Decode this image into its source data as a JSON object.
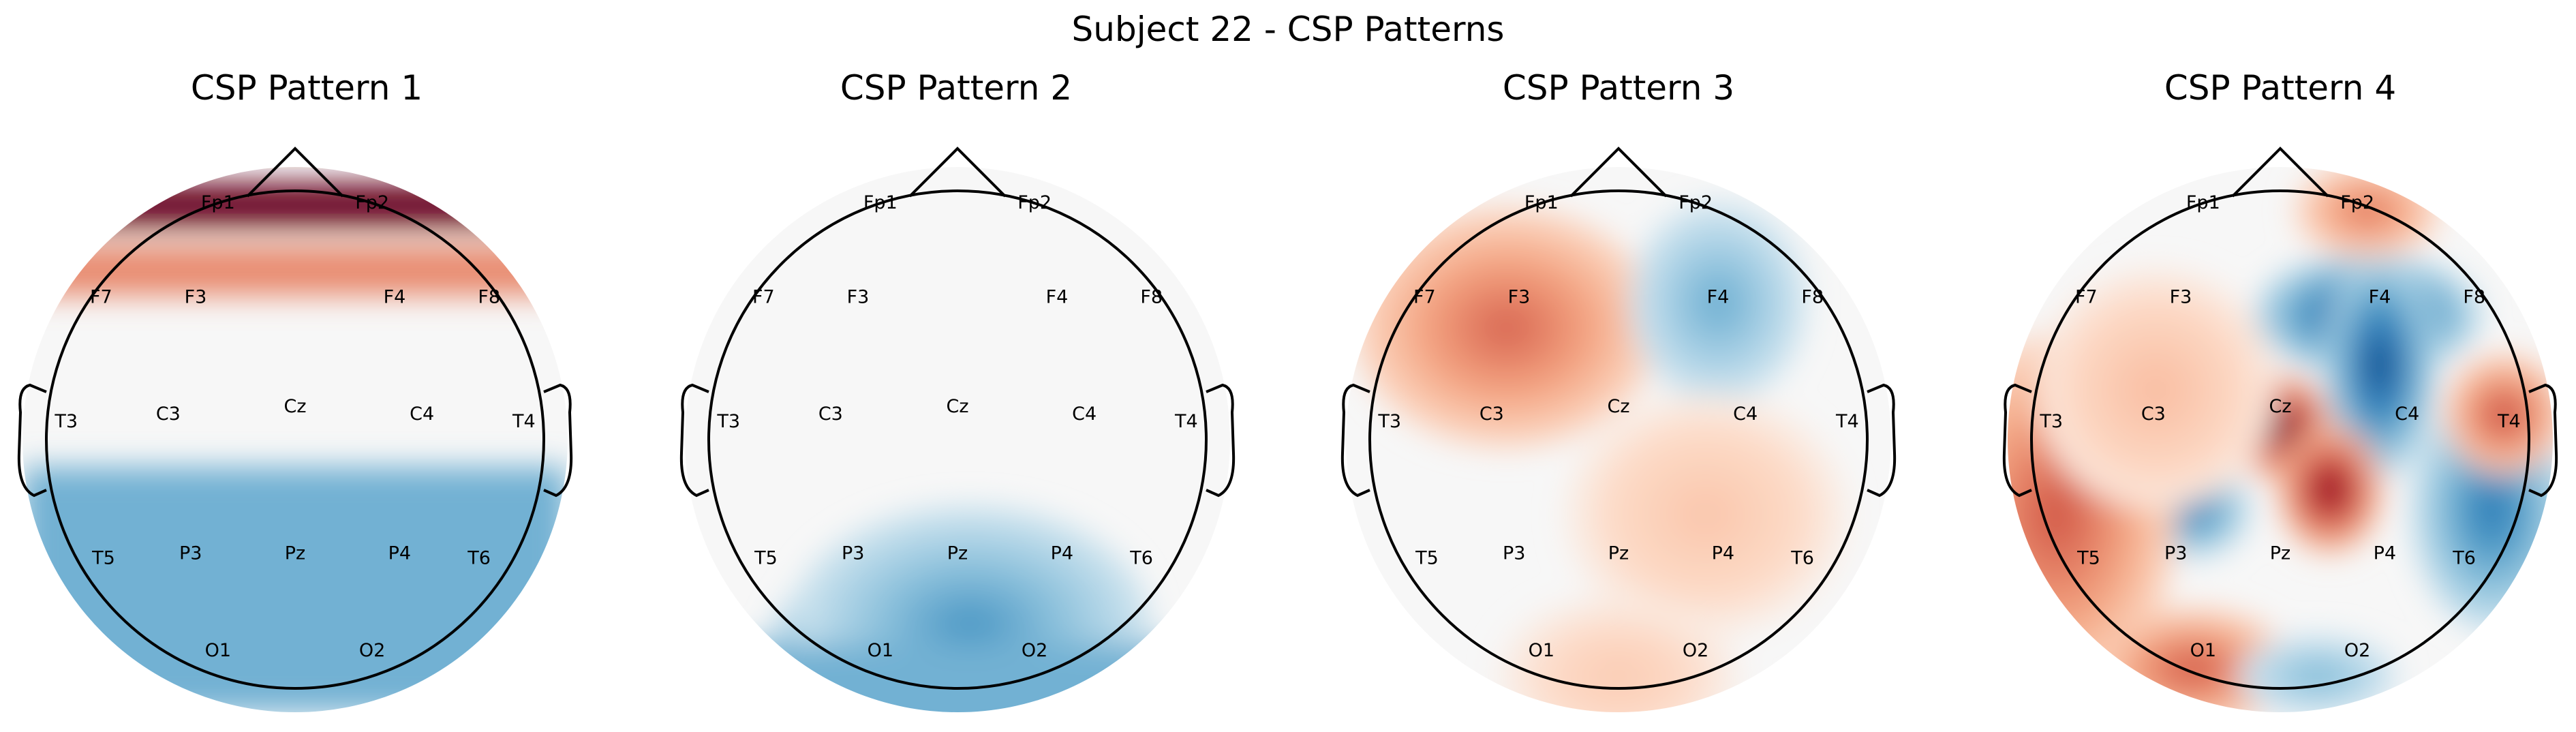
{
  "figure": {
    "suptitle": "Subject 22 - CSP Patterns"
  },
  "chart_data": [
    {
      "type": "heatmap",
      "title": "CSP Pattern 1",
      "colormap": "RdBu_r",
      "sensors": [
        "Fp1",
        "Fp2",
        "F7",
        "F3",
        "F4",
        "F8",
        "T3",
        "C3",
        "Cz",
        "C4",
        "T4",
        "T5",
        "P3",
        "Pz",
        "P4",
        "T6",
        "O1",
        "O2"
      ],
      "features": [
        {
          "kind": "band",
          "axis": "y",
          "center": -0.86,
          "width": 0.16,
          "value": 1.0
        },
        {
          "kind": "band",
          "axis": "y",
          "center": -0.62,
          "width": 0.18,
          "value": 0.35
        },
        {
          "kind": "band",
          "axis": "y",
          "center": 0.55,
          "width": 0.9,
          "value": -0.35
        }
      ]
    },
    {
      "type": "heatmap",
      "title": "CSP Pattern 2",
      "colormap": "RdBu_r",
      "sensors": [
        "Fp1",
        "Fp2",
        "F7",
        "F3",
        "F4",
        "F8",
        "T3",
        "C3",
        "Cz",
        "C4",
        "T4",
        "T5",
        "P3",
        "Pz",
        "P4",
        "T6",
        "O1",
        "O2"
      ],
      "features": [
        {
          "kind": "blob",
          "x": -0.3,
          "y": 0.85,
          "sx": 0.28,
          "sy": 0.22,
          "value": -1.0
        },
        {
          "kind": "blob",
          "x": 0.05,
          "y": 0.75,
          "sx": 0.45,
          "sy": 0.3,
          "value": -0.45
        },
        {
          "kind": "band",
          "axis": "y",
          "center": 0.95,
          "width": 0.4,
          "value": -0.35
        }
      ]
    },
    {
      "type": "heatmap",
      "title": "CSP Pattern 3",
      "colormap": "RdBu_r",
      "sensors": [
        "Fp1",
        "Fp2",
        "F7",
        "F3",
        "F4",
        "F8",
        "T3",
        "C3",
        "Cz",
        "C4",
        "T4",
        "T5",
        "P3",
        "Pz",
        "P4",
        "T6",
        "O1",
        "O2"
      ],
      "features": [
        {
          "kind": "blob",
          "x": -0.37,
          "y": -0.55,
          "sx": 0.2,
          "sy": 0.18,
          "value": 1.0
        },
        {
          "kind": "blob",
          "x": -0.45,
          "y": -0.45,
          "sx": 0.38,
          "sy": 0.3,
          "value": 0.45
        },
        {
          "kind": "blob",
          "x": 0.4,
          "y": -0.55,
          "sx": 0.22,
          "sy": 0.25,
          "value": -0.35
        },
        {
          "kind": "blob",
          "x": 0.35,
          "y": 0.3,
          "sx": 0.35,
          "sy": 0.3,
          "value": 0.12
        },
        {
          "kind": "blob",
          "x": 0.0,
          "y": 0.95,
          "sx": 0.3,
          "sy": 0.2,
          "value": 0.1
        }
      ]
    },
    {
      "type": "heatmap",
      "title": "CSP Pattern 4",
      "colormap": "RdBu_r",
      "sensors": [
        "Fp1",
        "Fp2",
        "F7",
        "F3",
        "F4",
        "F8",
        "T3",
        "C3",
        "Cz",
        "C4",
        "T4",
        "T5",
        "P3",
        "Pz",
        "P4",
        "T6",
        "O1",
        "O2"
      ],
      "features": [
        {
          "kind": "blob",
          "x": 0.35,
          "y": -0.5,
          "sx": 0.28,
          "sy": 0.15,
          "value": -0.9
        },
        {
          "kind": "blob",
          "x": 0.4,
          "y": -0.3,
          "sx": 0.14,
          "sy": 0.28,
          "value": -0.85
        },
        {
          "kind": "blob",
          "x": 0.0,
          "y": -0.05,
          "sx": 0.13,
          "sy": 0.13,
          "value": 1.0
        },
        {
          "kind": "blob",
          "x": 0.2,
          "y": 0.2,
          "sx": 0.13,
          "sy": 0.16,
          "value": 0.9
        },
        {
          "kind": "blob",
          "x": -0.35,
          "y": 0.28,
          "sx": 0.14,
          "sy": 0.12,
          "value": -0.6
        },
        {
          "kind": "blob",
          "x": 0.85,
          "y": 0.28,
          "sx": 0.2,
          "sy": 0.3,
          "value": -0.6
        },
        {
          "kind": "blob",
          "x": 0.9,
          "y": -0.1,
          "sx": 0.15,
          "sy": 0.15,
          "value": 0.55
        },
        {
          "kind": "blob",
          "x": -0.9,
          "y": 0.3,
          "sx": 0.3,
          "sy": 0.45,
          "value": 0.5
        },
        {
          "kind": "blob",
          "x": -0.35,
          "y": 0.92,
          "sx": 0.25,
          "sy": 0.15,
          "value": 0.5
        },
        {
          "kind": "blob",
          "x": 0.35,
          "y": -0.92,
          "sx": 0.18,
          "sy": 0.12,
          "value": 0.4
        },
        {
          "kind": "blob",
          "x": 0.15,
          "y": 0.95,
          "sx": 0.2,
          "sy": 0.1,
          "value": -0.3
        },
        {
          "kind": "blob",
          "x": -0.5,
          "y": -0.2,
          "sx": 0.3,
          "sy": 0.3,
          "value": 0.15
        }
      ]
    }
  ]
}
